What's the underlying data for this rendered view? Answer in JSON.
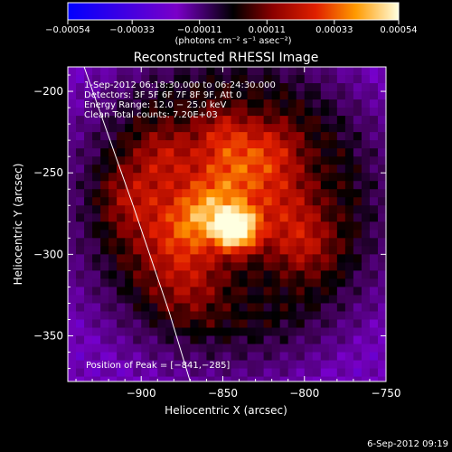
{
  "chart_data": {
    "type": "heatmap",
    "title": "Reconstructed RHESSI Image",
    "xlabel": "Heliocentric X (arcsec)",
    "ylabel": "Heliocentric Y (arcsec)",
    "xlim": [
      -945,
      -750
    ],
    "ylim": [
      -378,
      -185
    ],
    "x_ticks": [
      -900,
      -850,
      -800,
      -750
    ],
    "y_ticks": [
      -200,
      -250,
      -300,
      -350
    ],
    "x_tick_labels": [
      "−900",
      "−850",
      "−800",
      "−750"
    ],
    "y_tick_labels": [
      "−200",
      "−250",
      "−300",
      "−350"
    ],
    "colorbar": {
      "range": [
        -0.00054,
        0.00054
      ],
      "ticks": [
        -0.00054,
        -0.00033,
        -0.00011,
        0.00011,
        0.00033,
        0.00054
      ],
      "tick_labels": [
        "−0.00054",
        "−0.00033",
        "−0.00011",
        "0.00011",
        "0.00033",
        "0.00054"
      ],
      "units_label": "(photons cm⁻² s⁻¹ asec⁻²)"
    },
    "annotations": [
      "1-Sep-2012 06:18:30.000 to 06:24:30.000",
      "Detectors: 3F 5F 6F 7F 8F 9F, Att 0",
      "Energy Range: 12.0 − 25.0 keV",
      "Clean    Total counts: 7.20E+03"
    ],
    "peak": {
      "x": -841,
      "y": -285,
      "label": "Position of Peak = [−841,−285]"
    },
    "limb_curve": [
      [
        -935,
        -185
      ],
      [
        -905,
        -270
      ],
      [
        -883,
        -335
      ],
      [
        -870,
        -378
      ]
    ],
    "sources": [
      {
        "x": -841,
        "y": -285,
        "amp": 1.0,
        "sigma": 9
      },
      {
        "x": -860,
        "y": -275,
        "amp": 0.55,
        "sigma": 14
      },
      {
        "x": -880,
        "y": -290,
        "amp": 0.4,
        "sigma": 18
      },
      {
        "x": -845,
        "y": -250,
        "amp": 0.45,
        "sigma": 16
      },
      {
        "x": -815,
        "y": -270,
        "amp": 0.35,
        "sigma": 18
      },
      {
        "x": -820,
        "y": -235,
        "amp": 0.35,
        "sigma": 14
      },
      {
        "x": -885,
        "y": -240,
        "amp": 0.35,
        "sigma": 14
      },
      {
        "x": -850,
        "y": -225,
        "amp": 0.3,
        "sigma": 12
      },
      {
        "x": -800,
        "y": -295,
        "amp": 0.3,
        "sigma": 14
      },
      {
        "x": -870,
        "y": -320,
        "amp": 0.25,
        "sigma": 16
      },
      {
        "x": -905,
        "y": -265,
        "amp": 0.3,
        "sigma": 14
      }
    ],
    "timestamp": "6-Sep-2012 09:19"
  }
}
